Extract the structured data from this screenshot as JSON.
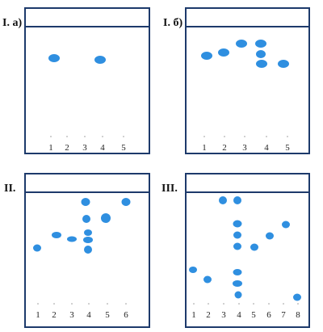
{
  "panels": [
    {
      "label": "I. а)",
      "lanes": [
        "1",
        "2",
        "3",
        "4",
        "5"
      ]
    },
    {
      "label": "I. б)",
      "lanes": [
        "1",
        "2",
        "3",
        "4",
        "5"
      ]
    },
    {
      "label": "II.",
      "lanes": [
        "1",
        "2",
        "3",
        "4",
        "5",
        "6"
      ]
    },
    {
      "label": "III.",
      "lanes": [
        "1",
        "2",
        "3",
        "4",
        "5",
        "6",
        "7",
        "8"
      ]
    }
  ]
}
